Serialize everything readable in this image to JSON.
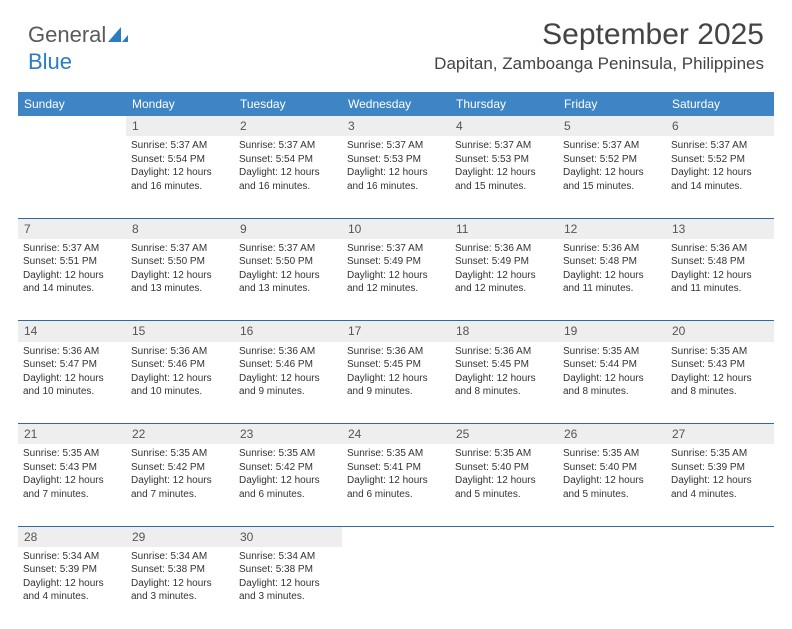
{
  "logo": {
    "text1": "General",
    "text2": "Blue"
  },
  "title": "September 2025",
  "location": "Dapitan, Zamboanga Peninsula, Philippines",
  "colors": {
    "header_bg": "#3e85c6",
    "header_text": "#ffffff",
    "daynum_bg": "#eeeeee",
    "row_divider": "#2f6aa3",
    "body_text": "#333333",
    "logo_gray": "#5a5a5a",
    "logo_blue": "#2b7cc0"
  },
  "weekdays": [
    "Sunday",
    "Monday",
    "Tuesday",
    "Wednesday",
    "Thursday",
    "Friday",
    "Saturday"
  ],
  "weeks": [
    {
      "nums": [
        "",
        "1",
        "2",
        "3",
        "4",
        "5",
        "6"
      ],
      "cells": [
        null,
        {
          "sunrise": "Sunrise: 5:37 AM",
          "sunset": "Sunset: 5:54 PM",
          "daylight": "Daylight: 12 hours and 16 minutes."
        },
        {
          "sunrise": "Sunrise: 5:37 AM",
          "sunset": "Sunset: 5:54 PM",
          "daylight": "Daylight: 12 hours and 16 minutes."
        },
        {
          "sunrise": "Sunrise: 5:37 AM",
          "sunset": "Sunset: 5:53 PM",
          "daylight": "Daylight: 12 hours and 16 minutes."
        },
        {
          "sunrise": "Sunrise: 5:37 AM",
          "sunset": "Sunset: 5:53 PM",
          "daylight": "Daylight: 12 hours and 15 minutes."
        },
        {
          "sunrise": "Sunrise: 5:37 AM",
          "sunset": "Sunset: 5:52 PM",
          "daylight": "Daylight: 12 hours and 15 minutes."
        },
        {
          "sunrise": "Sunrise: 5:37 AM",
          "sunset": "Sunset: 5:52 PM",
          "daylight": "Daylight: 12 hours and 14 minutes."
        }
      ]
    },
    {
      "nums": [
        "7",
        "8",
        "9",
        "10",
        "11",
        "12",
        "13"
      ],
      "cells": [
        {
          "sunrise": "Sunrise: 5:37 AM",
          "sunset": "Sunset: 5:51 PM",
          "daylight": "Daylight: 12 hours and 14 minutes."
        },
        {
          "sunrise": "Sunrise: 5:37 AM",
          "sunset": "Sunset: 5:50 PM",
          "daylight": "Daylight: 12 hours and 13 minutes."
        },
        {
          "sunrise": "Sunrise: 5:37 AM",
          "sunset": "Sunset: 5:50 PM",
          "daylight": "Daylight: 12 hours and 13 minutes."
        },
        {
          "sunrise": "Sunrise: 5:37 AM",
          "sunset": "Sunset: 5:49 PM",
          "daylight": "Daylight: 12 hours and 12 minutes."
        },
        {
          "sunrise": "Sunrise: 5:36 AM",
          "sunset": "Sunset: 5:49 PM",
          "daylight": "Daylight: 12 hours and 12 minutes."
        },
        {
          "sunrise": "Sunrise: 5:36 AM",
          "sunset": "Sunset: 5:48 PM",
          "daylight": "Daylight: 12 hours and 11 minutes."
        },
        {
          "sunrise": "Sunrise: 5:36 AM",
          "sunset": "Sunset: 5:48 PM",
          "daylight": "Daylight: 12 hours and 11 minutes."
        }
      ]
    },
    {
      "nums": [
        "14",
        "15",
        "16",
        "17",
        "18",
        "19",
        "20"
      ],
      "cells": [
        {
          "sunrise": "Sunrise: 5:36 AM",
          "sunset": "Sunset: 5:47 PM",
          "daylight": "Daylight: 12 hours and 10 minutes."
        },
        {
          "sunrise": "Sunrise: 5:36 AM",
          "sunset": "Sunset: 5:46 PM",
          "daylight": "Daylight: 12 hours and 10 minutes."
        },
        {
          "sunrise": "Sunrise: 5:36 AM",
          "sunset": "Sunset: 5:46 PM",
          "daylight": "Daylight: 12 hours and 9 minutes."
        },
        {
          "sunrise": "Sunrise: 5:36 AM",
          "sunset": "Sunset: 5:45 PM",
          "daylight": "Daylight: 12 hours and 9 minutes."
        },
        {
          "sunrise": "Sunrise: 5:36 AM",
          "sunset": "Sunset: 5:45 PM",
          "daylight": "Daylight: 12 hours and 8 minutes."
        },
        {
          "sunrise": "Sunrise: 5:35 AM",
          "sunset": "Sunset: 5:44 PM",
          "daylight": "Daylight: 12 hours and 8 minutes."
        },
        {
          "sunrise": "Sunrise: 5:35 AM",
          "sunset": "Sunset: 5:43 PM",
          "daylight": "Daylight: 12 hours and 8 minutes."
        }
      ]
    },
    {
      "nums": [
        "21",
        "22",
        "23",
        "24",
        "25",
        "26",
        "27"
      ],
      "cells": [
        {
          "sunrise": "Sunrise: 5:35 AM",
          "sunset": "Sunset: 5:43 PM",
          "daylight": "Daylight: 12 hours and 7 minutes."
        },
        {
          "sunrise": "Sunrise: 5:35 AM",
          "sunset": "Sunset: 5:42 PM",
          "daylight": "Daylight: 12 hours and 7 minutes."
        },
        {
          "sunrise": "Sunrise: 5:35 AM",
          "sunset": "Sunset: 5:42 PM",
          "daylight": "Daylight: 12 hours and 6 minutes."
        },
        {
          "sunrise": "Sunrise: 5:35 AM",
          "sunset": "Sunset: 5:41 PM",
          "daylight": "Daylight: 12 hours and 6 minutes."
        },
        {
          "sunrise": "Sunrise: 5:35 AM",
          "sunset": "Sunset: 5:40 PM",
          "daylight": "Daylight: 12 hours and 5 minutes."
        },
        {
          "sunrise": "Sunrise: 5:35 AM",
          "sunset": "Sunset: 5:40 PM",
          "daylight": "Daylight: 12 hours and 5 minutes."
        },
        {
          "sunrise": "Sunrise: 5:35 AM",
          "sunset": "Sunset: 5:39 PM",
          "daylight": "Daylight: 12 hours and 4 minutes."
        }
      ]
    },
    {
      "nums": [
        "28",
        "29",
        "30",
        "",
        "",
        "",
        ""
      ],
      "cells": [
        {
          "sunrise": "Sunrise: 5:34 AM",
          "sunset": "Sunset: 5:39 PM",
          "daylight": "Daylight: 12 hours and 4 minutes."
        },
        {
          "sunrise": "Sunrise: 5:34 AM",
          "sunset": "Sunset: 5:38 PM",
          "daylight": "Daylight: 12 hours and 3 minutes."
        },
        {
          "sunrise": "Sunrise: 5:34 AM",
          "sunset": "Sunset: 5:38 PM",
          "daylight": "Daylight: 12 hours and 3 minutes."
        },
        null,
        null,
        null,
        null
      ]
    }
  ]
}
